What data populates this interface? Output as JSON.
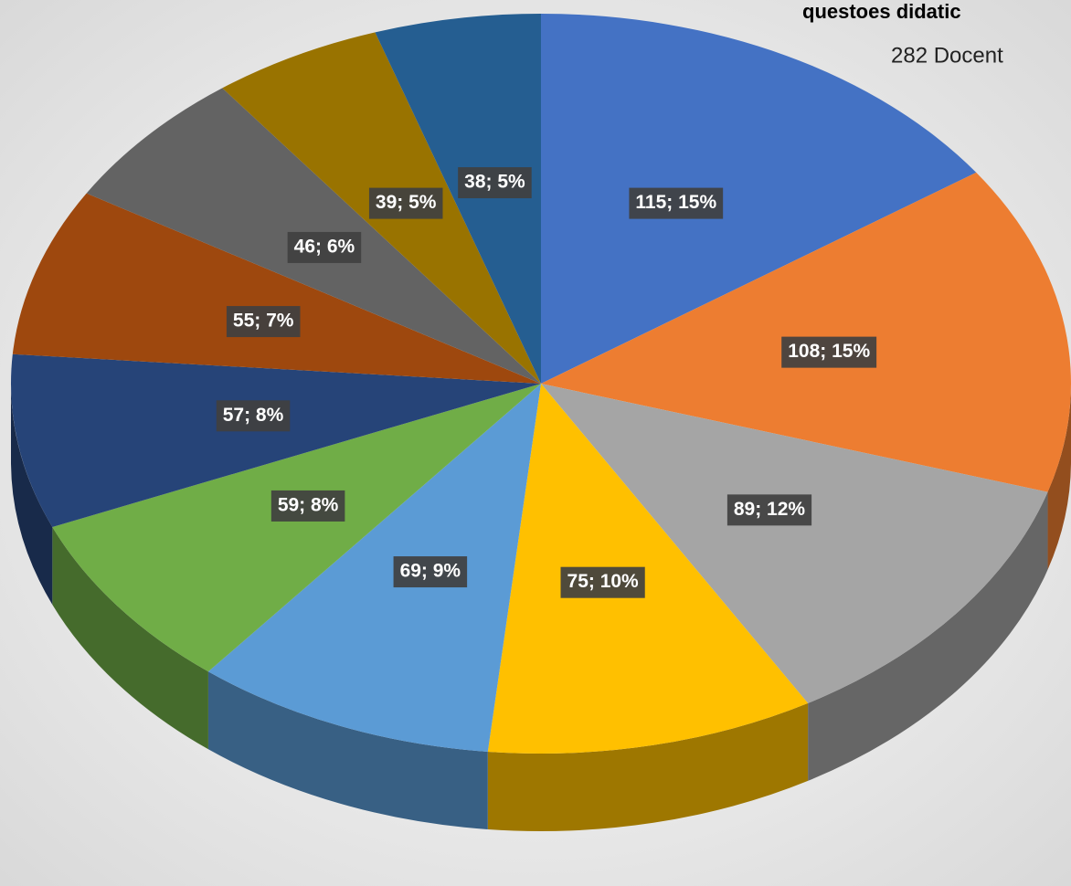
{
  "chart_data": {
    "type": "pie3d",
    "title": "questoes didatic",
    "subtitle": "282  Docent",
    "categories": [
      null,
      null,
      null,
      null,
      null,
      null,
      null,
      null,
      null,
      null,
      null
    ],
    "values": [
      115,
      108,
      89,
      75,
      69,
      59,
      57,
      55,
      46,
      39,
      38
    ],
    "value_labels": [
      "115; 15%",
      "108; 15%",
      "89; 12%",
      "75; 10%",
      "69; 9%",
      "59; 8%",
      "57; 8%",
      "55; 7%",
      "46; 6%",
      "39; 5%",
      "38; 5%"
    ],
    "colors": [
      "#4472c4",
      "#ed7d31",
      "#a5a5a5",
      "#ffc000",
      "#5b9bd5",
      "#70ad47",
      "#264478",
      "#9e480e",
      "#636363",
      "#997300",
      "#255e91"
    ]
  }
}
